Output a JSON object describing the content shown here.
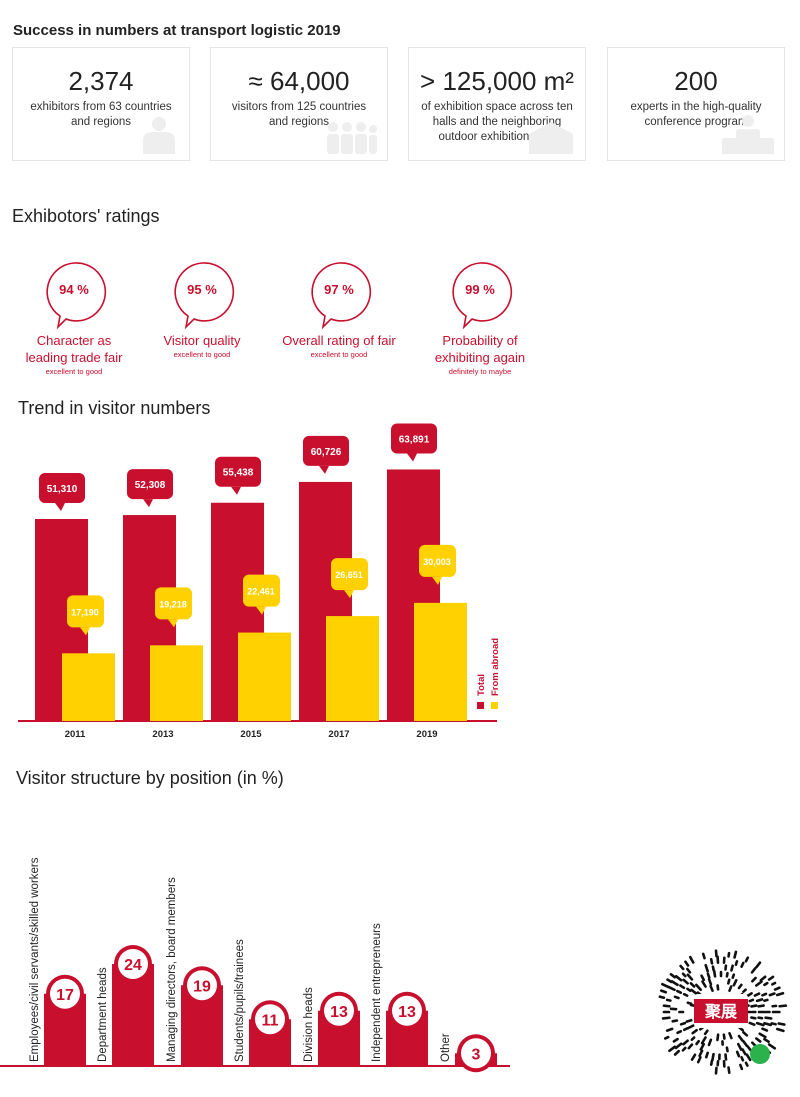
{
  "page_title": "Success in numbers at transport logistic 2019",
  "stats": [
    {
      "value": "2,374",
      "desc": "exhibitors from 63 countries and regions",
      "icon": "exhibitor-icon"
    },
    {
      "value": "≈ 64,000",
      "desc": "visitors from 125 countries and regions",
      "icon": "visitors-group-icon"
    },
    {
      "value": "> 125,000 m²",
      "desc": "of exhibition space across ten halls and the neighboring outdoor exhibition area",
      "icon": "exhibition-space-icon"
    },
    {
      "value": "200",
      "desc": "experts in the high-quality conference program",
      "icon": "speaker-podium-icon"
    }
  ],
  "ratings": {
    "title": "Exhibotors' ratings",
    "items": [
      {
        "pct": "94 %",
        "label": "Character as leading trade fair",
        "sub": "excellent to good"
      },
      {
        "pct": "95 %",
        "label": "Visitor quality",
        "sub": "excellent to good"
      },
      {
        "pct": "97 %",
        "label": "Overall rating of fair",
        "sub": "excellent to good"
      },
      {
        "pct": "99 %",
        "label": "Probability of exhibiting again",
        "sub": "definitely to maybe"
      }
    ]
  },
  "colors": {
    "red": "#c8102e",
    "yellow": "#ffd100"
  },
  "chart_data": [
    {
      "type": "bar",
      "title": "Trend in visitor numbers",
      "categories": [
        "2011",
        "2013",
        "2015",
        "2017",
        "2019"
      ],
      "series": [
        {
          "name": "Total",
          "values": [
            51310,
            52308,
            55438,
            60726,
            63891
          ],
          "labels": [
            "51,310",
            "52,308",
            "55,438",
            "60,726",
            "63,891"
          ]
        },
        {
          "name": "From abroad",
          "values": [
            17190,
            19218,
            22461,
            26651,
            30003
          ],
          "labels": [
            "17,190",
            "19,218",
            "22,461",
            "26,651",
            "30,003"
          ]
        }
      ],
      "legend_position": "right",
      "grid": false
    },
    {
      "type": "bar",
      "title": "Visitor structure by position (in %)",
      "categories": [
        "Employees/civil servants/skilled workers",
        "Department heads",
        "Managing directors, board members",
        "Students/pupils/trainees",
        "Division heads",
        "Independent entrepreneurs",
        "Other"
      ],
      "values": [
        17,
        24,
        19,
        11,
        13,
        13,
        3
      ],
      "grid": false
    }
  ],
  "qr_label": "聚展"
}
